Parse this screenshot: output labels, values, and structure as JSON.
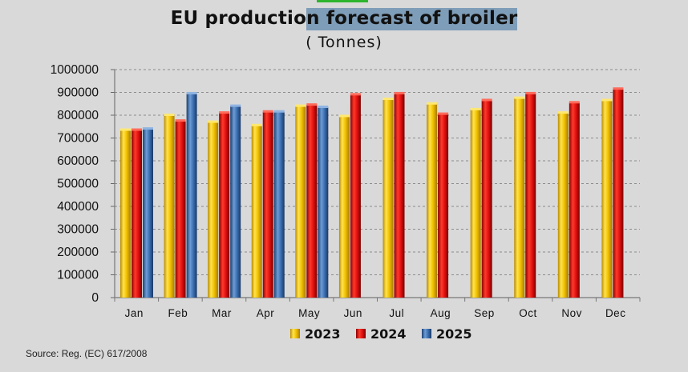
{
  "title_part1": "EU productio",
  "title_part2": "n forecast of broiler",
  "subtitle": "( Tonnes)",
  "source": "Source: Reg. (EC) 617/2008",
  "colors": {
    "background": "#d9d9d9",
    "title_highlight": "#7e9db8",
    "top_accent": "#2db52d",
    "gridline": "#8c8c8c"
  },
  "chart_data": {
    "type": "bar",
    "title": "EU production forecast of broiler",
    "subtitle": "( Tonnes)",
    "categories": [
      "Jan",
      "Feb",
      "Mar",
      "Apr",
      "May",
      "Jun",
      "Jul",
      "Aug",
      "Sep",
      "Oct",
      "Nov",
      "Dec"
    ],
    "series": [
      {
        "name": "2023",
        "color": "#f2c200",
        "values": [
          735000,
          800000,
          770000,
          755000,
          840000,
          795000,
          870000,
          850000,
          825000,
          875000,
          810000,
          865000
        ]
      },
      {
        "name": "2024",
        "color": "#e01010",
        "values": [
          735000,
          775000,
          810000,
          815000,
          845000,
          890000,
          895000,
          805000,
          865000,
          895000,
          855000,
          915000
        ]
      },
      {
        "name": "2025",
        "color": "#3a6fb0",
        "values": [
          740000,
          895000,
          840000,
          815000,
          835000,
          null,
          null,
          null,
          null,
          null,
          null,
          null
        ]
      }
    ],
    "ylim": [
      0,
      1000000
    ],
    "yticks": [
      "0",
      "100000",
      "200000",
      "300000",
      "400000",
      "500000",
      "600000",
      "700000",
      "800000",
      "900000",
      "1000000"
    ],
    "grid": true,
    "legend_position": "bottom"
  }
}
